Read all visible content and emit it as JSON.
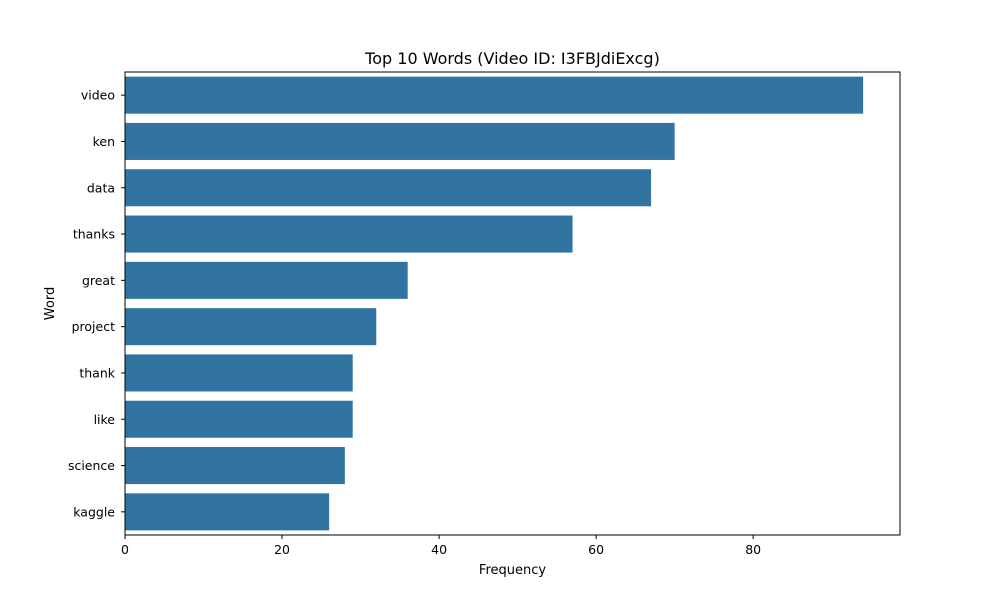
{
  "chart_data": {
    "type": "bar",
    "orientation": "horizontal",
    "title": "Top 10 Words (Video ID: I3FBJdiExcg)",
    "xlabel": "Frequency",
    "ylabel": "Word",
    "categories": [
      "video",
      "ken",
      "data",
      "thanks",
      "great",
      "project",
      "thank",
      "like",
      "science",
      "kaggle"
    ],
    "values": [
      94,
      70,
      67,
      57,
      36,
      32,
      29,
      29,
      28,
      26
    ],
    "xlim": [
      0,
      98.7
    ],
    "xticks": [
      0,
      20,
      40,
      60,
      80
    ],
    "grid": false,
    "bar_color": "#3274a1"
  }
}
